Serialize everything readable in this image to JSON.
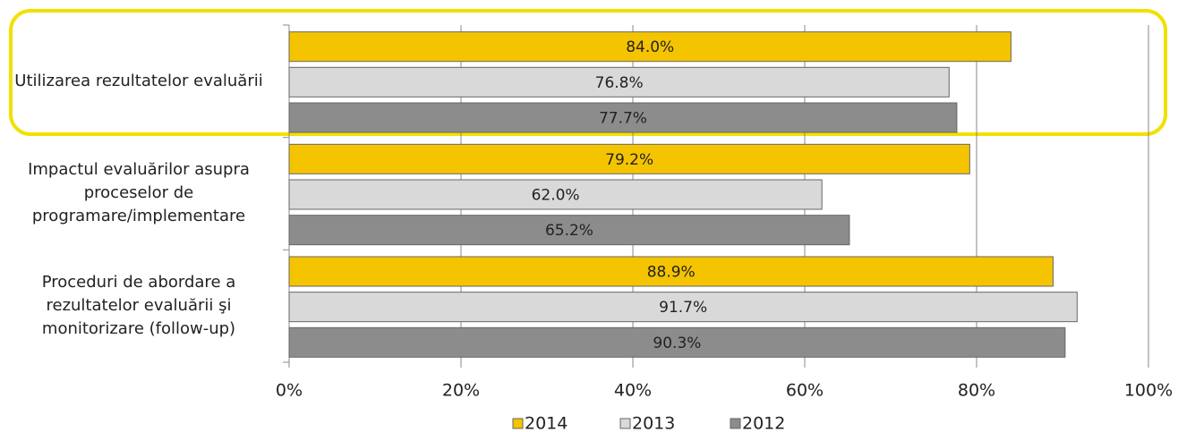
{
  "chart_data": {
    "type": "bar",
    "orientation": "horizontal",
    "categories": [
      "Utilizarea rezultatelor evaluării",
      "Impactul evaluărilor asupra proceselor de programare/implementare",
      "Proceduri de abordare a rezultatelor evaluării şi monitorizare (follow-up)"
    ],
    "series": [
      {
        "name": "2014",
        "color": "#f5c400",
        "values": [
          84.0,
          79.2,
          88.9
        ],
        "value_labels": [
          "84.0%",
          "79.2%",
          "88.9%"
        ]
      },
      {
        "name": "2013",
        "color": "#d9d9d9",
        "values": [
          76.8,
          62.0,
          91.7
        ],
        "value_labels": [
          "76.8%",
          "62.0%",
          "91.7%"
        ]
      },
      {
        "name": "2012",
        "color": "#8c8c8c",
        "values": [
          77.7,
          65.2,
          90.3
        ],
        "value_labels": [
          "77.7%",
          "65.2%",
          "90.3%"
        ]
      }
    ],
    "xlim": [
      0,
      100
    ],
    "xticks": [
      {
        "value": 0,
        "label": "0%"
      },
      {
        "value": 20,
        "label": "20%"
      },
      {
        "value": 40,
        "label": "40%"
      },
      {
        "value": 60,
        "label": "60%"
      },
      {
        "value": 80,
        "label": "80%"
      },
      {
        "value": 100,
        "label": "100%"
      }
    ],
    "grid": true,
    "legend": "bottom"
  }
}
